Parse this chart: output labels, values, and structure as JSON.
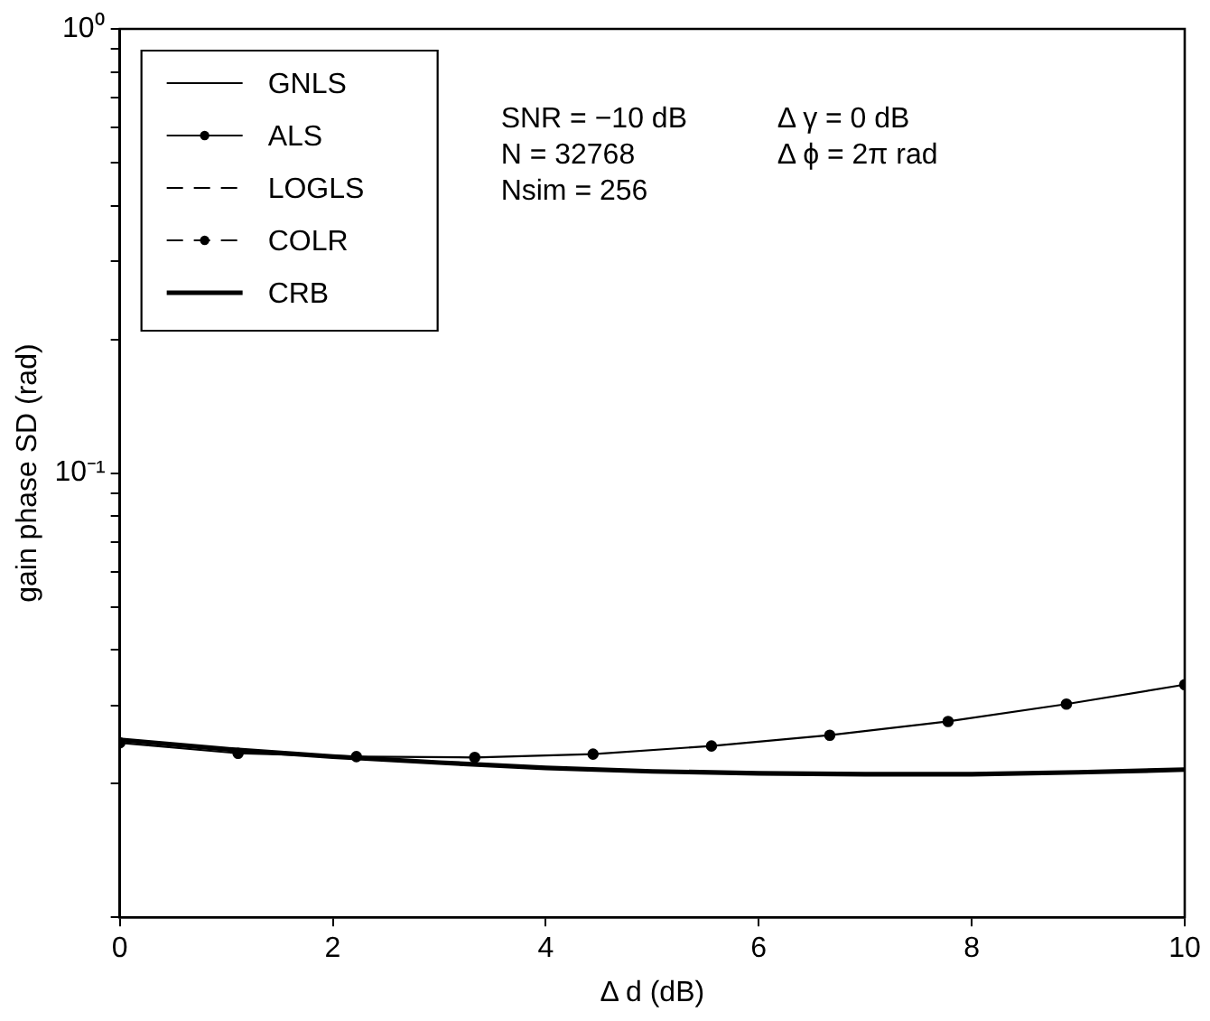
{
  "chart_data": {
    "type": "line",
    "xlabel": "Δ d (dB)",
    "ylabel": "gain phase SD (rad)",
    "log": "y",
    "grid": false,
    "legend": "top left",
    "xlim": [
      0,
      10
    ],
    "xticks": [
      0,
      2,
      4,
      6,
      8,
      10
    ],
    "ylim": [
      0.01,
      1
    ],
    "yticks": [
      {
        "value": 0.01,
        "label": null
      },
      {
        "value": 0.02,
        "label": null
      },
      {
        "value": 0.03,
        "label": null
      },
      {
        "value": 0.04,
        "label": null
      },
      {
        "value": 0.05,
        "label": null
      },
      {
        "value": 0.06,
        "label": null
      },
      {
        "value": 0.07,
        "label": null
      },
      {
        "value": 0.08,
        "label": null
      },
      {
        "value": 0.09,
        "label": null
      },
      {
        "value": 0.1,
        "label": "10⁻¹"
      },
      {
        "value": 0.2,
        "label": null
      },
      {
        "value": 0.3,
        "label": null
      },
      {
        "value": 0.4,
        "label": null
      },
      {
        "value": 0.5,
        "label": null
      },
      {
        "value": 0.6,
        "label": null
      },
      {
        "value": 0.7,
        "label": null
      },
      {
        "value": 0.8,
        "label": null
      },
      {
        "value": 0.9,
        "label": null
      },
      {
        "value": 1,
        "label": "10⁰"
      }
    ],
    "annotations": [
      "SNR = −10 dB",
      "N = 32768",
      "Nsim = 256",
      "Δ γ = 0 dB",
      "Δ ϕ = 2π rad"
    ],
    "series": [
      {
        "name": "GNLS",
        "color": "#000000",
        "line_style": "solid",
        "marker": "none"
      },
      {
        "name": "ALS",
        "color": "#000000",
        "line_style": "solid",
        "marker": "circle",
        "x": [
          0,
          1.111,
          2.222,
          3.333,
          4.444,
          5.556,
          6.667,
          7.778,
          8.889,
          10
        ],
        "values": [
          0.0247,
          0.0234,
          0.023,
          0.0229,
          0.0233,
          0.0243,
          0.0257,
          0.0276,
          0.0302,
          0.0334
        ]
      },
      {
        "name": "LOGLS",
        "color": "#000000",
        "line_style": "dashed",
        "marker": "none"
      },
      {
        "name": "COLR",
        "color": "#000000",
        "line_style": "dashed",
        "marker": "circle"
      },
      {
        "name": "CRB",
        "color": "#000000",
        "line_style": "solid",
        "marker": "none",
        "x": [
          0,
          1,
          2,
          3,
          4,
          5,
          6,
          7,
          8,
          9,
          10
        ],
        "values": [
          0.0251,
          0.0239,
          0.023,
          0.0223,
          0.0217,
          0.0213,
          0.0211,
          0.021,
          0.021,
          0.0212,
          0.0215
        ]
      }
    ]
  }
}
